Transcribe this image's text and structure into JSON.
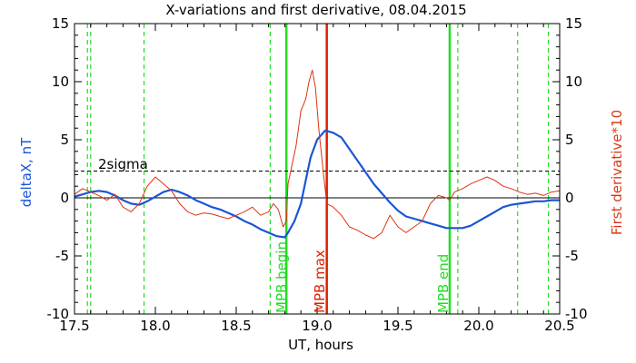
{
  "chart_data": {
    "type": "line",
    "title": "X-variations and first derivative, 08.04.2015",
    "xlabel": "UT, hours",
    "ylabel_left": "deltaX, nT",
    "ylabel_right": "First derivative*10",
    "xlim": [
      17.5,
      20.5
    ],
    "ylim_left": [
      -10,
      15
    ],
    "ylim_right": [
      -10,
      15
    ],
    "xticks": [
      "17.5",
      "18.0",
      "18.5",
      "19.0",
      "19.5",
      "20.0",
      "20.5"
    ],
    "yticks_left": [
      "-10",
      "-5",
      "0",
      "5",
      "10",
      "15"
    ],
    "yticks_right": [
      "-10",
      "-5",
      "0",
      "5",
      "10",
      "15"
    ],
    "threshold": {
      "label": "2sigma",
      "value": 2.3,
      "color": "#000000",
      "style": "dashed"
    },
    "zero_line": 0,
    "vlines": [
      {
        "x": 17.58,
        "color": "#22dd22",
        "style": "dashed"
      },
      {
        "x": 17.6,
        "color": "#22dd22",
        "style": "dashed"
      },
      {
        "x": 17.93,
        "color": "#22dd22",
        "style": "dashed"
      },
      {
        "x": 18.71,
        "color": "#22dd22",
        "style": "dashed"
      },
      {
        "x": 18.81,
        "color": "#22dd22",
        "style": "solid",
        "label": "MPB begin"
      },
      {
        "x": 19.06,
        "color": "#dd2200",
        "style": "solid",
        "label": "MPB max"
      },
      {
        "x": 19.82,
        "color": "#22dd22",
        "style": "solid",
        "label": "MPB end"
      },
      {
        "x": 19.87,
        "color": "#22dd22",
        "style": "dashed"
      },
      {
        "x": 20.24,
        "color": "#22dd22",
        "style": "dashed"
      },
      {
        "x": 20.43,
        "color": "#22dd22",
        "style": "dashed"
      }
    ],
    "series": [
      {
        "name": "deltaX",
        "color": "#1a55d6",
        "axis": "left",
        "x": [
          17.5,
          17.55,
          17.6,
          17.65,
          17.7,
          17.75,
          17.8,
          17.85,
          17.9,
          17.95,
          18.0,
          18.05,
          18.1,
          18.15,
          18.2,
          18.25,
          18.3,
          18.35,
          18.4,
          18.45,
          18.5,
          18.55,
          18.6,
          18.65,
          18.7,
          18.75,
          18.8,
          18.81,
          18.82,
          18.86,
          18.9,
          18.93,
          18.96,
          19.0,
          19.05,
          19.1,
          19.15,
          19.2,
          19.25,
          19.3,
          19.35,
          19.4,
          19.45,
          19.5,
          19.55,
          19.6,
          19.65,
          19.7,
          19.75,
          19.8,
          19.85,
          19.9,
          19.95,
          20.0,
          20.05,
          20.1,
          20.15,
          20.2,
          20.25,
          20.3,
          20.35,
          20.4,
          20.45,
          20.5
        ],
        "values": [
          0.1,
          0.3,
          0.5,
          0.6,
          0.5,
          0.2,
          -0.2,
          -0.5,
          -0.6,
          -0.3,
          0.1,
          0.5,
          0.7,
          0.5,
          0.2,
          -0.2,
          -0.5,
          -0.8,
          -1.0,
          -1.3,
          -1.6,
          -2.0,
          -2.3,
          -2.7,
          -3.0,
          -3.3,
          -3.4,
          -3.2,
          -3.0,
          -2.0,
          -0.5,
          1.5,
          3.5,
          5.0,
          5.8,
          5.6,
          5.2,
          4.2,
          3.2,
          2.2,
          1.2,
          0.4,
          -0.4,
          -1.1,
          -1.6,
          -1.8,
          -2.0,
          -2.2,
          -2.4,
          -2.6,
          -2.6,
          -2.6,
          -2.4,
          -2.0,
          -1.6,
          -1.2,
          -0.8,
          -0.6,
          -0.5,
          -0.4,
          -0.3,
          -0.3,
          -0.2,
          -0.2
        ]
      },
      {
        "name": "First derivative*10",
        "color": "#dd3311",
        "axis": "right",
        "x": [
          17.5,
          17.55,
          17.6,
          17.65,
          17.7,
          17.75,
          17.8,
          17.85,
          17.9,
          17.95,
          18.0,
          18.05,
          18.1,
          18.15,
          18.2,
          18.25,
          18.3,
          18.35,
          18.4,
          18.45,
          18.5,
          18.55,
          18.6,
          18.65,
          18.7,
          18.73,
          18.76,
          18.79,
          18.81,
          18.82,
          18.84,
          18.87,
          18.9,
          18.93,
          18.95,
          18.97,
          18.99,
          19.01,
          19.04,
          19.06,
          19.1,
          19.15,
          19.2,
          19.25,
          19.3,
          19.35,
          19.4,
          19.45,
          19.5,
          19.55,
          19.6,
          19.65,
          19.7,
          19.75,
          19.8,
          19.82,
          19.85,
          19.9,
          19.95,
          20.0,
          20.05,
          20.1,
          20.15,
          20.2,
          20.25,
          20.3,
          20.35,
          20.4,
          20.45,
          20.5
        ],
        "values": [
          0.3,
          0.8,
          0.5,
          0.2,
          -0.2,
          0.3,
          -0.8,
          -1.2,
          -0.5,
          1.0,
          1.8,
          1.2,
          0.6,
          -0.5,
          -1.2,
          -1.5,
          -1.3,
          -1.4,
          -1.6,
          -1.8,
          -1.5,
          -1.2,
          -0.8,
          -1.5,
          -1.2,
          -0.5,
          -1.0,
          -2.5,
          -2.0,
          1.2,
          2.5,
          4.5,
          7.5,
          8.5,
          10.0,
          11.0,
          9.5,
          6.0,
          2.0,
          -0.5,
          -0.8,
          -1.5,
          -2.5,
          -2.8,
          -3.2,
          -3.5,
          -3.0,
          -1.5,
          -2.5,
          -3.0,
          -2.5,
          -2.0,
          -0.5,
          0.2,
          0.0,
          -0.2,
          0.5,
          0.8,
          1.2,
          1.5,
          1.8,
          1.5,
          1.0,
          0.8,
          0.5,
          0.3,
          0.4,
          0.2,
          0.5,
          0.6
        ]
      }
    ]
  }
}
